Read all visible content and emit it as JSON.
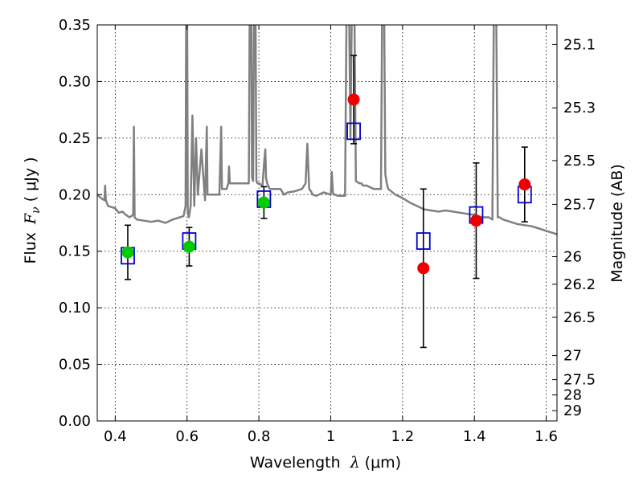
{
  "chart_data": {
    "type": "scatter",
    "title": "",
    "xlabel": {
      "prefix": "Wavelength",
      "symbol": "λ",
      "unit": "(μm)"
    },
    "ylabel": {
      "prefix": "Flux",
      "symbol": "F",
      "subscript": "ν",
      "unit": "( μJy )"
    },
    "y2label": "Magnitude (AB)",
    "xlim": [
      0.35,
      1.63
    ],
    "ylim": [
      0.0,
      0.35
    ],
    "grid": true,
    "x_ticks": [
      0.4,
      0.6,
      0.8,
      1.0,
      1.2,
      1.4,
      1.6
    ],
    "x_tick_labels": [
      "0.4",
      "0.6",
      "0.8",
      "1",
      "1.2",
      "1.4",
      "1.6"
    ],
    "y_ticks": [
      0.0,
      0.05,
      0.1,
      0.15,
      0.2,
      0.25,
      0.3,
      0.35
    ],
    "y_tick_labels": [
      "0.00",
      "0.05",
      "0.10",
      "0.15",
      "0.20",
      "0.25",
      "0.30",
      "0.35"
    ],
    "y2_ticks": [
      {
        "label": "25.1",
        "flux": 0.3327
      },
      {
        "label": "25.3",
        "flux": 0.2767
      },
      {
        "label": "25.5",
        "flux": 0.2301
      },
      {
        "label": "25.7",
        "flux": 0.1914
      },
      {
        "label": "26",
        "flux": 0.1452
      },
      {
        "label": "26.2",
        "flux": 0.1208
      },
      {
        "label": "26.5",
        "flux": 0.0916
      },
      {
        "label": "27",
        "flux": 0.0578
      },
      {
        "label": "27.5",
        "flux": 0.0365
      },
      {
        "label": "28",
        "flux": 0.023
      },
      {
        "label": "29",
        "flux": 0.0091
      }
    ],
    "series": [
      {
        "role": "model_spectrum",
        "type": "line",
        "color": "#808080",
        "x": [
          0.35,
          0.36,
          0.37,
          0.372,
          0.374,
          0.38,
          0.39,
          0.4,
          0.41,
          0.42,
          0.43,
          0.44,
          0.45,
          0.452,
          0.454,
          0.46,
          0.48,
          0.5,
          0.52,
          0.54,
          0.56,
          0.58,
          0.59,
          0.596,
          0.598,
          0.6,
          0.602,
          0.605,
          0.61,
          0.615,
          0.62,
          0.625,
          0.63,
          0.64,
          0.65,
          0.655,
          0.657,
          0.659,
          0.662,
          0.67,
          0.69,
          0.695,
          0.697,
          0.699,
          0.702,
          0.71,
          0.715,
          0.717,
          0.719,
          0.722,
          0.73,
          0.76,
          0.772,
          0.775,
          0.778,
          0.781,
          0.784,
          0.787,
          0.79,
          0.793,
          0.796,
          0.8,
          0.81,
          0.815,
          0.818,
          0.82,
          0.823,
          0.83,
          0.86,
          0.87,
          0.88,
          0.9,
          0.92,
          0.93,
          0.935,
          0.94,
          0.945,
          0.95,
          0.96,
          0.98,
          1.0,
          1.003,
          1.006,
          1.009,
          1.012,
          1.02,
          1.04,
          1.045,
          1.05,
          1.055,
          1.06,
          1.065,
          1.07,
          1.08,
          1.085,
          1.09,
          1.1,
          1.12,
          1.14,
          1.144,
          1.148,
          1.152,
          1.156,
          1.16,
          1.18,
          1.2,
          1.22,
          1.24,
          1.26,
          1.28,
          1.3,
          1.32,
          1.34,
          1.36,
          1.38,
          1.4,
          1.42,
          1.44,
          1.45,
          1.455,
          1.46,
          1.465,
          1.47,
          1.48,
          1.5,
          1.52,
          1.54,
          1.56,
          1.58,
          1.6,
          1.63
        ],
        "y": [
          0.2,
          0.197,
          0.195,
          0.208,
          0.195,
          0.19,
          0.189,
          0.188,
          0.184,
          0.185,
          0.182,
          0.18,
          0.182,
          0.26,
          0.18,
          0.178,
          0.177,
          0.176,
          0.177,
          0.175,
          0.178,
          0.18,
          0.181,
          0.19,
          0.4,
          0.4,
          0.185,
          0.18,
          0.19,
          0.27,
          0.19,
          0.25,
          0.2,
          0.24,
          0.195,
          0.26,
          0.2,
          0.2,
          0.2,
          0.2,
          0.2,
          0.26,
          0.205,
          0.205,
          0.205,
          0.205,
          0.21,
          0.225,
          0.21,
          0.21,
          0.21,
          0.21,
          0.21,
          0.4,
          0.4,
          0.215,
          0.212,
          0.4,
          0.4,
          0.212,
          0.21,
          0.21,
          0.208,
          0.23,
          0.24,
          0.215,
          0.21,
          0.205,
          0.205,
          0.2,
          0.202,
          0.203,
          0.205,
          0.21,
          0.245,
          0.205,
          0.203,
          0.2,
          0.199,
          0.202,
          0.2,
          0.22,
          0.202,
          0.2,
          0.2,
          0.199,
          0.199,
          0.4,
          0.4,
          0.25,
          0.4,
          0.4,
          0.212,
          0.21,
          0.21,
          0.208,
          0.208,
          0.205,
          0.205,
          0.4,
          0.4,
          0.218,
          0.21,
          0.205,
          0.2,
          0.197,
          0.193,
          0.19,
          0.187,
          0.186,
          0.185,
          0.186,
          0.185,
          0.184,
          0.183,
          0.182,
          0.18,
          0.18,
          0.178,
          0.4,
          0.4,
          0.18,
          0.18,
          0.178,
          0.176,
          0.174,
          0.173,
          0.172,
          0.17,
          0.168,
          0.165
        ]
      },
      {
        "role": "model_photometry",
        "type": "scatter",
        "marker": "open-square",
        "color": "#0000cc",
        "points": [
          {
            "x": 0.435,
            "y": 0.146
          },
          {
            "x": 0.606,
            "y": 0.159
          },
          {
            "x": 0.814,
            "y": 0.196
          },
          {
            "x": 1.064,
            "y": 0.256
          },
          {
            "x": 1.258,
            "y": 0.159
          },
          {
            "x": 1.405,
            "y": 0.182
          },
          {
            "x": 1.54,
            "y": 0.2
          }
        ]
      },
      {
        "role": "observed_flux",
        "type": "scatter",
        "marker": "filled-circle",
        "points": [
          {
            "x": 0.435,
            "y": 0.149,
            "err_low": 0.024,
            "err_high": 0.024,
            "color": "#00cc00"
          },
          {
            "x": 0.606,
            "y": 0.154,
            "err_low": 0.017,
            "err_high": 0.017,
            "color": "#00cc00"
          },
          {
            "x": 0.814,
            "y": 0.193,
            "err_low": 0.014,
            "err_high": 0.014,
            "color": "#00cc00"
          },
          {
            "x": 1.064,
            "y": 0.284,
            "err_low": 0.039,
            "err_high": 0.039,
            "color": "#ee0000"
          },
          {
            "x": 1.258,
            "y": 0.135,
            "err_low": 0.07,
            "err_high": 0.07,
            "color": "#ee0000"
          },
          {
            "x": 1.405,
            "y": 0.177,
            "err_low": 0.051,
            "err_high": 0.051,
            "color": "#ee0000"
          },
          {
            "x": 1.54,
            "y": 0.209,
            "err_low": 0.033,
            "err_high": 0.033,
            "color": "#ee0000"
          }
        ]
      }
    ]
  }
}
